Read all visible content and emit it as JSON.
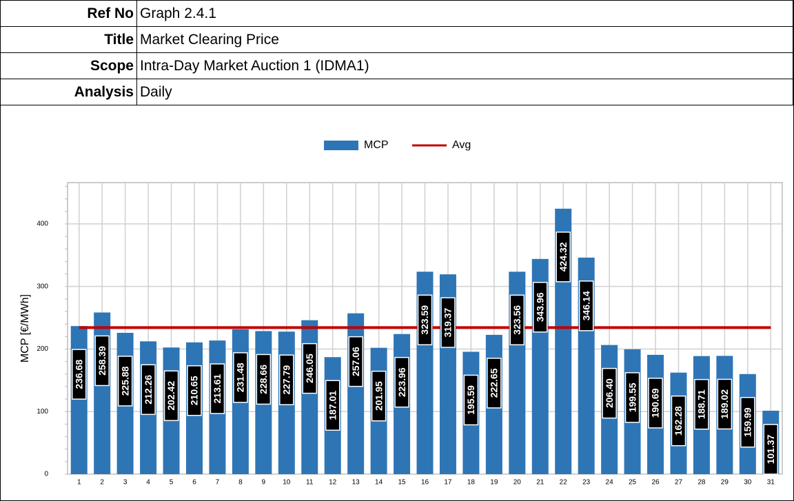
{
  "header": {
    "rows": [
      {
        "label": "Ref No",
        "value": "Graph 2.4.1"
      },
      {
        "label": "Title",
        "value": "Market Clearing Price"
      },
      {
        "label": "Scope",
        "value": "Intra-Day Market Auction 1 (IDMA1)"
      },
      {
        "label": "Analysis",
        "value": "Daily"
      }
    ]
  },
  "chart_data": {
    "type": "bar",
    "y_label": "MCP [€/MWh]",
    "categories": [
      "1",
      "2",
      "3",
      "4",
      "5",
      "6",
      "7",
      "8",
      "9",
      "10",
      "11",
      "12",
      "13",
      "14",
      "15",
      "16",
      "17",
      "18",
      "19",
      "20",
      "21",
      "22",
      "23",
      "24",
      "25",
      "26",
      "27",
      "28",
      "29",
      "30",
      "31"
    ],
    "series": [
      {
        "name": "MCP",
        "color": "#2e75b6",
        "values": [
          236.68,
          258.39,
          225.88,
          212.26,
          202.42,
          210.65,
          213.61,
          231.48,
          228.66,
          227.79,
          246.05,
          187.01,
          257.06,
          201.95,
          223.96,
          323.59,
          319.37,
          195.59,
          222.65,
          323.56,
          343.96,
          424.32,
          346.14,
          206.4,
          199.55,
          190.69,
          162.28,
          188.71,
          189.02,
          159.99,
          101.37
        ],
        "value_labels": [
          "236.68",
          "258.39",
          "225.88",
          "212.26",
          "202.42",
          "210.65",
          "213.61",
          "231.48",
          "228.66",
          "227.79",
          "246.05",
          "187.01",
          "257.06",
          "201.95",
          "223.96",
          "323.59",
          "319.37",
          "195.59",
          "222.65",
          "323.56",
          "343.96",
          "424.32",
          "346.14",
          "206.40",
          "199.55",
          "190.69",
          "162.28",
          "188.71",
          "189.02",
          "159.99",
          "101.37"
        ]
      },
      {
        "name": "Avg",
        "color": "#c00000",
        "type": "line",
        "values": [
          234.23,
          234.23,
          234.23,
          234.23,
          234.23,
          234.23,
          234.23,
          234.23,
          234.23,
          234.23,
          234.23,
          234.23,
          234.23,
          234.23,
          234.23,
          234.23,
          234.23,
          234.23,
          234.23,
          234.23,
          234.23,
          234.23,
          234.23,
          234.23,
          234.23,
          234.23,
          234.23,
          234.23,
          234.23,
          234.23,
          234.23
        ]
      }
    ],
    "ylim": [
      0,
      466
    ],
    "yticks": [
      0,
      100,
      200,
      300,
      400
    ],
    "grid": true,
    "legend": "top"
  }
}
